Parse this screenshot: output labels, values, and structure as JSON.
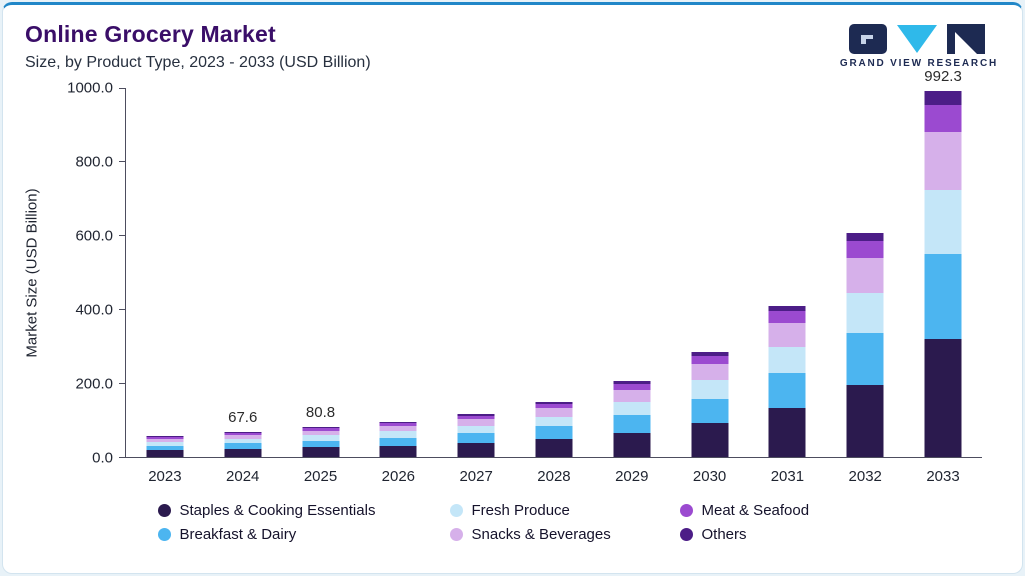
{
  "header": {
    "title": "Online Grocery Market",
    "subtitle": "Size, by Product Type, 2023 - 2033 (USD Billion)"
  },
  "logo": {
    "text": "GRAND VIEW RESEARCH"
  },
  "colors": {
    "accent_top_border": "#2187c8",
    "title": "#3a0e68",
    "logo_navy": "#1d2a52",
    "logo_cyan": "#2fb9ea"
  },
  "chart_data": {
    "type": "bar",
    "variant": "stacked",
    "title": "Online Grocery Market",
    "subtitle": "Size, by Product Type, 2023 - 2033 (USD Billion)",
    "xlabel": "",
    "ylabel": "Market Size (USD Billion)",
    "ylim": [
      0,
      1000
    ],
    "ytick_step": 200,
    "grid": false,
    "legend_position": "bottom",
    "categories": [
      "2023",
      "2024",
      "2025",
      "2026",
      "2027",
      "2028",
      "2029",
      "2030",
      "2031",
      "2032",
      "2033"
    ],
    "series": [
      {
        "name": "Staples & Cooking Essentials",
        "color": "#2b1a4e",
        "values": [
          18.0,
          21.8,
          26.0,
          30.6,
          37.4,
          48.3,
          66.0,
          91.8,
          132.0,
          195.8,
          320.0
        ]
      },
      {
        "name": "Breakfast & Dairy",
        "color": "#4cb5f0",
        "values": [
          13.0,
          15.7,
          18.7,
          22.0,
          26.9,
          34.8,
          47.5,
          66.1,
          95.1,
          141.1,
          230.0
        ]
      },
      {
        "name": "Fresh Produce",
        "color": "#c4e6f8",
        "values": [
          9.9,
          11.9,
          14.2,
          16.7,
          20.4,
          26.4,
          36.1,
          50.2,
          72.2,
          107.0,
          175.0
        ]
      },
      {
        "name": "Snacks & Beverages",
        "color": "#d6b0ea",
        "values": [
          8.7,
          10.5,
          12.6,
          14.8,
          18.1,
          23.4,
          32.0,
          44.4,
          64.0,
          94.8,
          155.0
        ]
      },
      {
        "name": "Meat & Seafood",
        "color": "#9b4ad0",
        "values": [
          4.3,
          5.1,
          6.2,
          7.2,
          8.8,
          11.4,
          15.6,
          21.7,
          31.2,
          46.2,
          75.0
        ]
      },
      {
        "name": "Others",
        "color": "#4c1d87",
        "values": [
          2.1,
          2.6,
          3.1,
          3.7,
          4.4,
          5.7,
          7.8,
          10.8,
          15.5,
          23.1,
          37.3
        ]
      }
    ],
    "legend_order": [
      0,
      2,
      4,
      1,
      3,
      5
    ],
    "bar_labels": {
      "2024": "67.6",
      "2025": "80.8",
      "2033": "992.3"
    }
  }
}
